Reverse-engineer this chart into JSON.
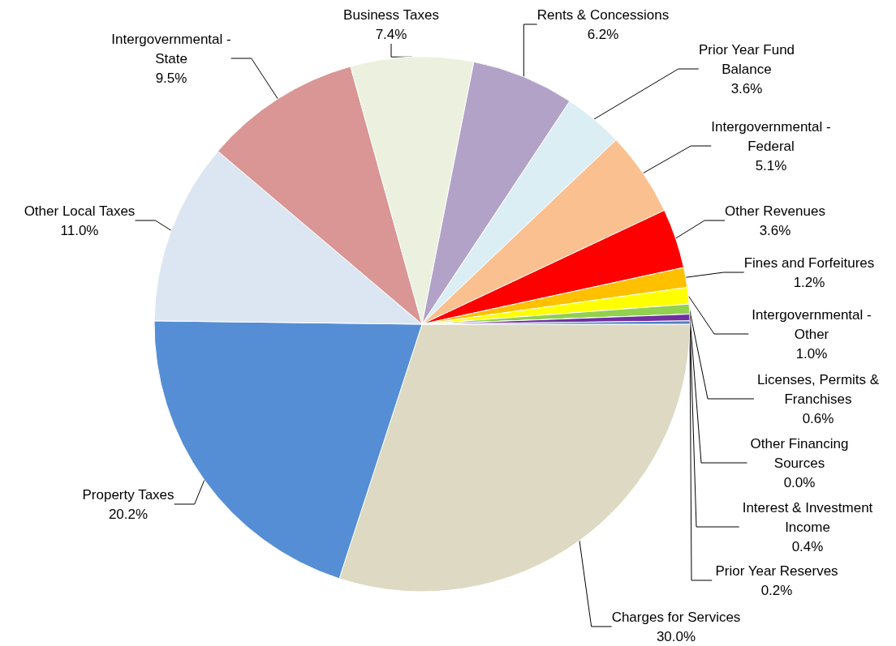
{
  "chart_data": {
    "type": "pie",
    "categories": [
      "Charges for Services",
      "Property Taxes",
      "Other Local Taxes",
      "Intergovernmental - State",
      "Business Taxes",
      "Rents & Concessions",
      "Prior Year Fund Balance",
      "Intergovernmental - Federal",
      "Other Revenues",
      "Fines and Forfeitures",
      "Intergovernmental - Other",
      "Licenses, Permits & Franchises",
      "Other Financing Sources",
      "Interest & Investment Income",
      "Prior Year Reserves"
    ],
    "values": [
      30.0,
      20.2,
      11.0,
      9.5,
      7.4,
      6.2,
      3.6,
      5.1,
      3.6,
      1.2,
      1.0,
      0.6,
      0.0,
      0.4,
      0.2
    ],
    "value_labels": [
      "30.0%",
      "20.2%",
      "11.0%",
      "9.5%",
      "7.4%",
      "6.2%",
      "3.6%",
      "5.1%",
      "3.6%",
      "1.2%",
      "1.0%",
      "0.6%",
      "0.0%",
      "0.4%",
      "0.2%"
    ],
    "colors": [
      "#ddd9c3",
      "#558ed5",
      "#dce6f2",
      "#d99694",
      "#ebf1de",
      "#b3a2c7",
      "#dbeef4",
      "#fac090",
      "#ff0000",
      "#ffc000",
      "#ffff00",
      "#92d050",
      "#00b0f0",
      "#7030a0",
      "#4f81bd"
    ],
    "legend": false
  }
}
